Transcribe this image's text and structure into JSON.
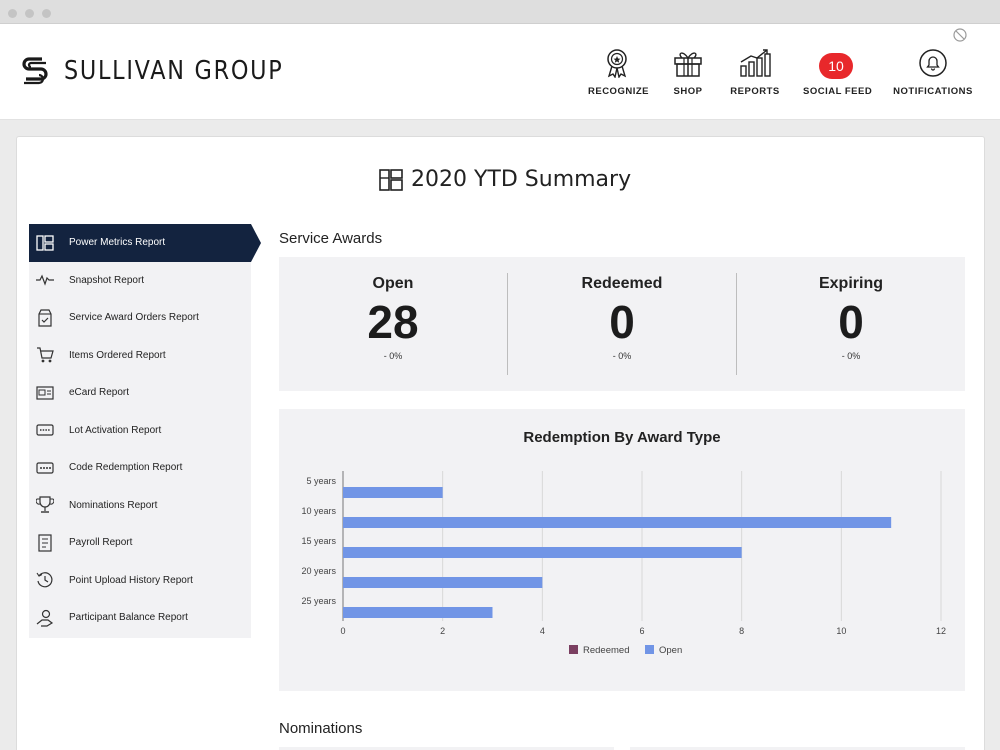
{
  "header": {
    "brand": "SULLIVAN GROUP",
    "nav": [
      {
        "label": "RECOGNIZE",
        "icon": "award-ribbon-icon"
      },
      {
        "label": "SHOP",
        "icon": "gift-icon"
      },
      {
        "label": "REPORTS",
        "icon": "bar-chart-icon"
      },
      {
        "label": "SOCIAL FEED",
        "badge": "10"
      },
      {
        "label": "NOTIFICATIONS",
        "icon": "bell-icon"
      }
    ]
  },
  "page": {
    "title": "2020 YTD Summary"
  },
  "sidebar": {
    "items": [
      {
        "label": "Power Metrics Report",
        "icon": "dashboard-icon",
        "active": true
      },
      {
        "label": "Snapshot Report",
        "icon": "pulse-icon"
      },
      {
        "label": "Service Award Orders Report",
        "icon": "box-check-icon"
      },
      {
        "label": "Items Ordered Report",
        "icon": "cart-icon"
      },
      {
        "label": "eCard Report",
        "icon": "ecard-icon"
      },
      {
        "label": "Lot Activation Report",
        "icon": "card-dots-icon"
      },
      {
        "label": "Code Redemption Report",
        "icon": "code-dots-icon"
      },
      {
        "label": "Nominations Report",
        "icon": "trophy-icon"
      },
      {
        "label": "Payroll Report",
        "icon": "document-icon"
      },
      {
        "label": "Point Upload History Report",
        "icon": "history-icon"
      },
      {
        "label": "Participant Balance Report",
        "icon": "hand-coin-icon"
      }
    ]
  },
  "service_awards": {
    "title": "Service Awards",
    "stats": [
      {
        "label": "Open",
        "value": "28",
        "change": "- 0%"
      },
      {
        "label": "Redeemed",
        "value": "0",
        "change": "- 0%"
      },
      {
        "label": "Expiring",
        "value": "0",
        "change": "- 0%"
      }
    ]
  },
  "chart_data": {
    "type": "bar",
    "orientation": "horizontal",
    "title": "Redemption By Award Type",
    "categories": [
      "5 years",
      "10 years",
      "15 years",
      "20 years",
      "25 years"
    ],
    "series": [
      {
        "name": "Redeemed",
        "values": [
          0,
          0,
          0,
          0,
          0
        ],
        "color": "#7b3f61"
      },
      {
        "name": "Open",
        "values": [
          2,
          11,
          8,
          4,
          3
        ],
        "color": "#7195e6"
      }
    ],
    "xlim": [
      0,
      12
    ],
    "xticks": [
      "0",
      "2",
      "4",
      "6",
      "8",
      "10",
      "12"
    ],
    "grid": true,
    "legend": "bottom-center"
  },
  "nominations": {
    "title": "Nominations"
  },
  "colors": {
    "nav_active": "#13233f",
    "badge": "#e8282b",
    "bar_open": "#7195e6",
    "bar_redeemed": "#7b3f61"
  }
}
